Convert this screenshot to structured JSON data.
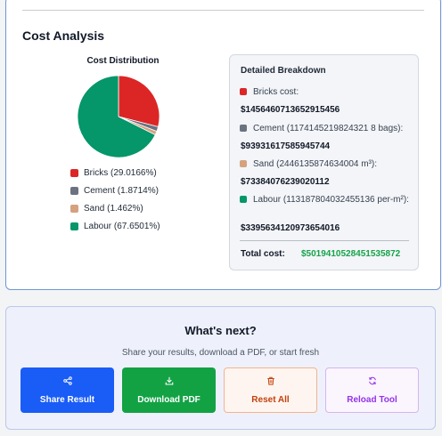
{
  "section": {
    "title": "Cost Analysis"
  },
  "chart": {
    "title": "Cost Distribution"
  },
  "chart_data": {
    "type": "pie",
    "title": "Cost Distribution",
    "categories": [
      "Bricks",
      "Cement",
      "Sand",
      "Labour"
    ],
    "values": [
      29.0166,
      1.8714,
      1.462,
      67.6501
    ],
    "colors": [
      "#dc2626",
      "#6b7280",
      "#d4a27f",
      "#059669"
    ],
    "legend_labels": [
      "Bricks (29.0166%)",
      "Cement (1.8714%)",
      "Sand (1.462%)",
      "Labour (67.6501%)"
    ],
    "legend_position": "bottom"
  },
  "breakdown": {
    "title": "Detailed Breakdown",
    "items": [
      {
        "label": "Bricks cost:",
        "value": "$1456460713652915456",
        "color": "#dc2626"
      },
      {
        "label": "Cement (1174145219824321 8 bags):",
        "value": "$93931617585945744",
        "color": "#6b7280"
      },
      {
        "label": "Sand (2446135874634004 m³):",
        "value": "$73384076239020112",
        "color": "#d4a27f"
      },
      {
        "label": "Labour (113187804032455136 per-m²):",
        "value": "$3395634120973654016",
        "color": "#059669"
      }
    ],
    "total_label": "Total cost:",
    "total_value": "$5019410528451535872"
  },
  "next": {
    "title": "What's next?",
    "subtitle": "Share your results, download a PDF, or start fresh",
    "buttons": {
      "share": {
        "label": "Share Result",
        "icon": "share-icon"
      },
      "pdf": {
        "label": "Download PDF",
        "icon": "download-icon"
      },
      "reset": {
        "label": "Reset All",
        "icon": "trash-icon"
      },
      "reload": {
        "label": "Reload Tool",
        "icon": "reload-icon"
      }
    }
  }
}
